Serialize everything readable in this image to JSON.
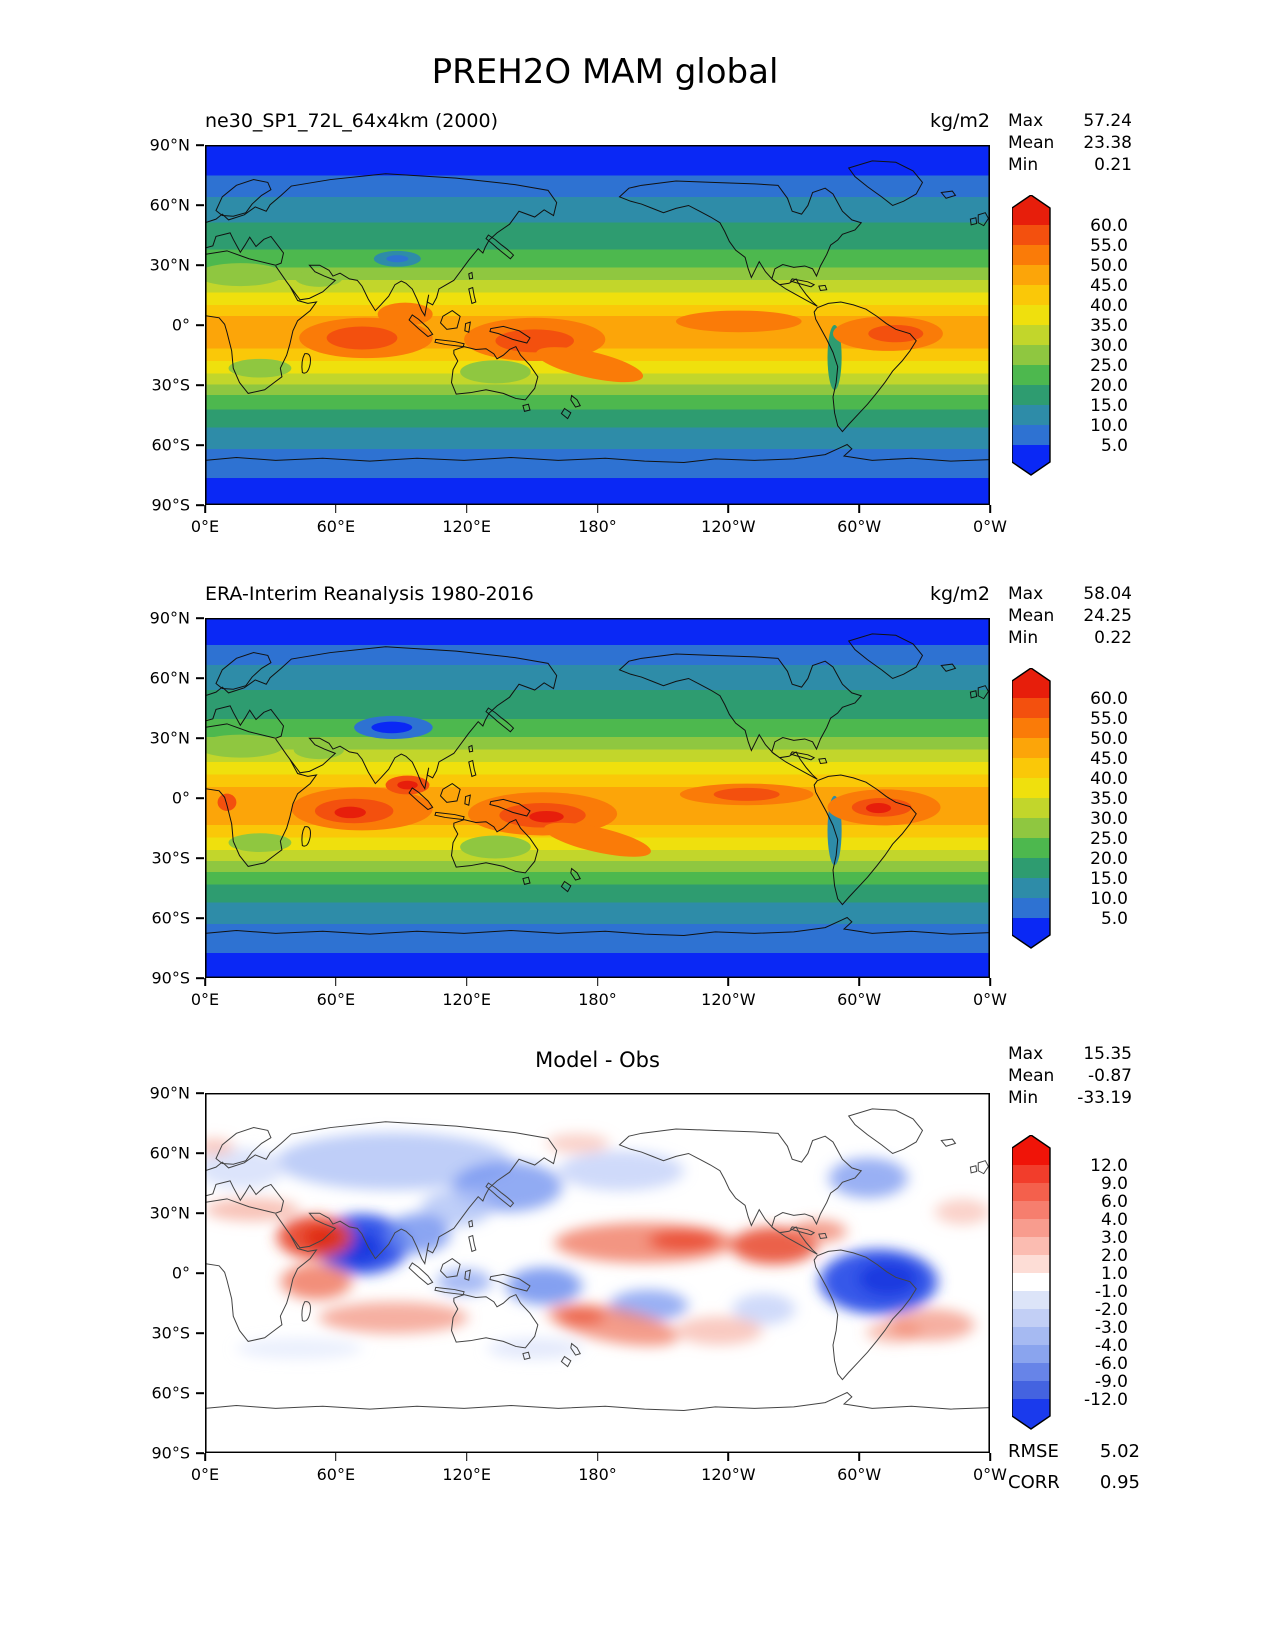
{
  "page_title": "PREH2O MAM global",
  "panels": [
    {
      "title": "ne30_SP1_72L_64x4km (2000)",
      "units": "kg/m2",
      "stats": [
        [
          "Max",
          "57.24"
        ],
        [
          "Mean",
          "23.38"
        ],
        [
          "Min",
          "0.21"
        ]
      ],
      "colorbar": {
        "levels": [
          "60.0",
          "55.0",
          "50.0",
          "45.0",
          "40.0",
          "35.0",
          "30.0",
          "25.0",
          "20.0",
          "15.0",
          "10.0",
          "5.0"
        ],
        "colors": [
          "#E71E0B",
          "#F3500E",
          "#FA7B08",
          "#FCA509",
          "#FAC808",
          "#EFE00D",
          "#C2D62B",
          "#8FC740",
          "#4DB84E",
          "#2E9C70",
          "#2E8CA8",
          "#2E72D2",
          "#0A28F5"
        ]
      },
      "yticks": [
        "90°N",
        "60°N",
        "30°N",
        "0°",
        "30°S",
        "60°S",
        "90°S"
      ],
      "xticks": [
        "0°E",
        "60°E",
        "120°E",
        "180°",
        "120°W",
        "60°W",
        "0°W"
      ]
    },
    {
      "title": "ERA-Interim Reanalysis 1980-2016",
      "units": "kg/m2",
      "stats": [
        [
          "Max",
          "58.04"
        ],
        [
          "Mean",
          "24.25"
        ],
        [
          "Min",
          "0.22"
        ]
      ],
      "colorbar": {
        "levels": [
          "60.0",
          "55.0",
          "50.0",
          "45.0",
          "40.0",
          "35.0",
          "30.0",
          "25.0",
          "20.0",
          "15.0",
          "10.0",
          "5.0"
        ],
        "colors": [
          "#E71E0B",
          "#F3500E",
          "#FA7B08",
          "#FCA509",
          "#FAC808",
          "#EFE00D",
          "#C2D62B",
          "#8FC740",
          "#4DB84E",
          "#2E9C70",
          "#2E8CA8",
          "#2E72D2",
          "#0A28F5"
        ]
      },
      "yticks": [
        "90°N",
        "60°N",
        "30°N",
        "0°",
        "30°S",
        "60°S",
        "90°S"
      ],
      "xticks": [
        "0°E",
        "60°E",
        "120°E",
        "180°",
        "120°W",
        "60°W",
        "0°W"
      ]
    },
    {
      "title": "Model - Obs",
      "units": "",
      "stats": [
        [
          "Max",
          "15.35"
        ],
        [
          "Mean",
          "-0.87"
        ],
        [
          "Min",
          "-33.19"
        ]
      ],
      "extra_stats": [
        [
          "RMSE",
          "5.02"
        ],
        [
          "CORR",
          "0.95"
        ]
      ],
      "colorbar": {
        "levels": [
          "12.0",
          "9.0",
          "6.0",
          "4.0",
          "3.0",
          "2.0",
          "1.0",
          "-1.0",
          "-2.0",
          "-3.0",
          "-4.0",
          "-6.0",
          "-9.0",
          "-12.0"
        ],
        "colors": [
          "#F01408",
          "#F23D2B",
          "#F4604C",
          "#F67E6E",
          "#F89C8E",
          "#FBBCB1",
          "#FDDDD6",
          "#FFFFFF",
          "#DCE4F8",
          "#C2CFF5",
          "#A6BAF2",
          "#8AA4EE",
          "#6784E8",
          "#4463E0",
          "#1A3AED"
        ]
      },
      "yticks": [
        "90°N",
        "60°N",
        "30°N",
        "0°",
        "30°S",
        "60°S",
        "90°S"
      ],
      "xticks": [
        "0°E",
        "60°E",
        "120°E",
        "180°",
        "120°W",
        "60°W",
        "0°W"
      ]
    }
  ],
  "chart_data": [
    {
      "type": "heatmap",
      "subtype": "filled-contour global map, equirectangular 0E-360E / 90N-90S",
      "title": "ne30_SP1_72L_64x4km (2000)",
      "figure_title": "PREH2O MAM global",
      "variable": "PREH2O",
      "season": "MAM",
      "units": "kg/m2",
      "stats": {
        "max": 57.24,
        "mean": 23.38,
        "min": 0.21
      },
      "contour_levels": [
        5,
        10,
        15,
        20,
        25,
        30,
        35,
        40,
        45,
        50,
        55,
        60
      ],
      "colormap": [
        "#E71E0B",
        "#F3500E",
        "#FA7B08",
        "#FCA509",
        "#FAC808",
        "#EFE00D",
        "#C2D62B",
        "#8FC740",
        "#4DB84E",
        "#2E9C70",
        "#2E8CA8",
        "#2E72D2",
        "#0A28F5"
      ],
      "legend_position": "right vertical colorbar with pointed extend caps",
      "xticks": [
        "0°E",
        "60°E",
        "120°E",
        "180°",
        "120°W",
        "60°W",
        "0°W"
      ],
      "yticks": [
        "90°N",
        "60°N",
        "30°N",
        "0°",
        "30°S",
        "60°S",
        "90°S"
      ],
      "description": "Zonal bands: blue <5 at poles rising to orange 45-55 near equator; maxima over tropical Indian Ocean, west Pacific warm pool, ITCZ and Amazon; dry (blue/teal) over Tibet and Andes."
    },
    {
      "type": "heatmap",
      "subtype": "filled-contour global map, equirectangular 0E-360E / 90N-90S",
      "title": "ERA-Interim Reanalysis 1980-2016",
      "units": "kg/m2",
      "stats": {
        "max": 58.04,
        "mean": 24.25,
        "min": 0.22
      },
      "contour_levels": [
        5,
        10,
        15,
        20,
        25,
        30,
        35,
        40,
        45,
        50,
        55,
        60
      ],
      "colormap": [
        "#E71E0B",
        "#F3500E",
        "#FA7B08",
        "#FCA509",
        "#FAC808",
        "#EFE00D",
        "#C2D62B",
        "#8FC740",
        "#4DB84E",
        "#2E9C70",
        "#2E8CA8",
        "#2E72D2",
        "#0A28F5"
      ],
      "legend_position": "right vertical colorbar with pointed extend caps",
      "xticks": [
        "0°E",
        "60°E",
        "120°E",
        "180°",
        "120°W",
        "60°W",
        "0°W"
      ],
      "yticks": [
        "90°N",
        "60°N",
        "30°N",
        "0°",
        "30°S",
        "60°S",
        "90°S"
      ],
      "description": "Same structure as model panel with red >55 cores over Bay of Bengal, equatorial Indian Ocean, west Pacific and Amazon; strong dry blue over Tibetan plateau."
    },
    {
      "type": "heatmap",
      "subtype": "filled-contour difference map (blue-white-red diverging)",
      "title": "Model - Obs",
      "units": "kg/m2",
      "stats": {
        "max": 15.35,
        "mean": -0.87,
        "min": -33.19,
        "rmse": 5.02,
        "corr": 0.95
      },
      "contour_levels": [
        -12,
        -9,
        -6,
        -4,
        -3,
        -2,
        -1,
        1,
        2,
        3,
        4,
        6,
        9,
        12
      ],
      "colormap": [
        "#F01408",
        "#F23D2B",
        "#F4604C",
        "#F67E6E",
        "#F89C8E",
        "#FBBCB1",
        "#FDDDD6",
        "#FFFFFF",
        "#DCE4F8",
        "#C2CFF5",
        "#A6BAF2",
        "#8AA4EE",
        "#6784E8",
        "#4463E0",
        "#1A3AED"
      ],
      "legend_position": "right vertical colorbar with pointed extend caps",
      "xticks": [
        "0°E",
        "60°E",
        "120°E",
        "180°",
        "120°W",
        "60°W",
        "0°W"
      ],
      "yticks": [
        "90°N",
        "60°N",
        "30°N",
        "0°",
        "30°S",
        "60°S",
        "90°S"
      ],
      "description": "Dry bias (blue) over Arabian Sea/India, equatorial west Pacific and tropical Atlantic/Amazon; wet bias (red) over Arabia, west Indian Ocean, central/east Pacific trade regions and SPCZ."
    }
  ]
}
